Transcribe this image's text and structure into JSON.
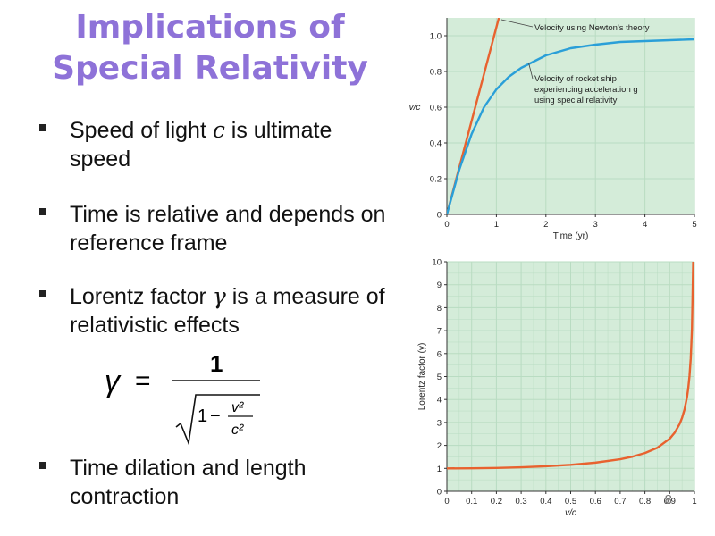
{
  "slide": {
    "title_line1": "Implications of",
    "title_line2": "Special Relativity",
    "page_number": "8"
  },
  "bullets": [
    {
      "pre": "Speed of light ",
      "var": "c",
      "post": " is ultimate speed"
    },
    {
      "pre": "Time is relative and depends on reference frame",
      "var": "",
      "post": ""
    },
    {
      "pre": "Lorentz factor ",
      "var": "γ",
      "post": " is a measure of relativistic effects"
    },
    {
      "pre": "Time dilation and length contraction",
      "var": "",
      "post": ""
    }
  ],
  "formula": {
    "lhs": "γ",
    "equals": "=",
    "numerator": "1",
    "one": "1",
    "minus": "−",
    "v2": "v²",
    "c2": "c²"
  },
  "colors": {
    "plot_bg": "#d4ecd9",
    "grid": "#b9dcc2",
    "newton": "#e8622f",
    "relativity": "#2a9fd8",
    "lorentz": "#e8622f",
    "title": "#8e72d8"
  },
  "chart_data": [
    {
      "type": "line",
      "title": "",
      "xlabel": "Time (yr)",
      "ylabel": "v/c",
      "xlim": [
        0,
        5
      ],
      "ylim": [
        0,
        1.1
      ],
      "xticks": [
        "0",
        "1",
        "2",
        "3",
        "4",
        "5"
      ],
      "yticks": [
        "0",
        "0.2",
        "0.4",
        "0.6",
        "0.8",
        "1.0"
      ],
      "grid": true,
      "series": [
        {
          "name": "Velocity using Newton's theory",
          "x": [
            0,
            1.05
          ],
          "y": [
            0,
            1.1
          ]
        },
        {
          "name": "Velocity of rocket ship experiencing acceleration g using special relativity",
          "x": [
            0,
            0.25,
            0.5,
            0.75,
            1.0,
            1.25,
            1.5,
            2.0,
            2.5,
            3.0,
            3.5,
            4.0,
            4.5,
            5.0
          ],
          "y": [
            0,
            0.25,
            0.45,
            0.6,
            0.7,
            0.77,
            0.82,
            0.89,
            0.93,
            0.95,
            0.965,
            0.97,
            0.975,
            0.98
          ]
        }
      ],
      "annotations": [
        {
          "text": "Velocity using Newton's theory"
        },
        {
          "text": "Velocity of rocket ship"
        },
        {
          "text": "experiencing acceleration g"
        },
        {
          "text": "using special relativity"
        }
      ]
    },
    {
      "type": "line",
      "title": "",
      "xlabel": "v/c",
      "ylabel": "Lorentz factor (γ)",
      "xlim": [
        0,
        1
      ],
      "ylim": [
        0,
        10
      ],
      "xticks": [
        "0",
        "0.1",
        "0.2",
        "0.3",
        "0.4",
        "0.5",
        "0.6",
        "0.7",
        "0.8",
        "0.9",
        "1"
      ],
      "yticks": [
        "0",
        "1",
        "2",
        "3",
        "4",
        "5",
        "6",
        "7",
        "8",
        "9",
        "10"
      ],
      "grid": true,
      "series": [
        {
          "name": "",
          "x": [
            0,
            0.1,
            0.2,
            0.3,
            0.4,
            0.5,
            0.6,
            0.7,
            0.75,
            0.8,
            0.85,
            0.9,
            0.92,
            0.94,
            0.95,
            0.96,
            0.97,
            0.975,
            0.98,
            0.985,
            0.99,
            0.995
          ],
          "y": [
            1,
            1.005,
            1.02,
            1.048,
            1.091,
            1.155,
            1.25,
            1.4,
            1.512,
            1.667,
            1.898,
            2.294,
            2.552,
            2.931,
            3.203,
            3.571,
            4.113,
            4.5,
            5.025,
            5.795,
            7.089,
            10.0
          ]
        }
      ]
    }
  ]
}
